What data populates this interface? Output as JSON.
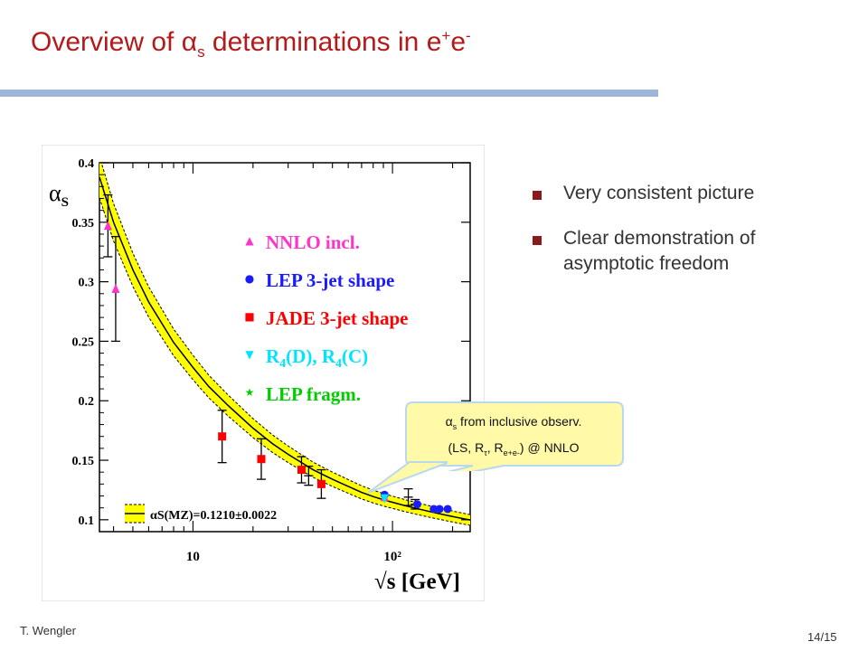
{
  "slide": {
    "title_main": "Overview of ",
    "title_alpha": "α",
    "title_alpha_sub": "s",
    "title_mid": " determinations in e",
    "title_sup1": "+",
    "title_e2": "e",
    "title_sup2": "-",
    "bullets": [
      "Very consistent picture",
      "Clear demonstration of asymptotic freedom"
    ],
    "author": "T. Wengler",
    "page": "14/15"
  },
  "callout": {
    "line1_alpha": "α",
    "line1_sub": "s",
    "line1_rest": " from inclusive observ.",
    "line2_a": "(LS, R",
    "line2_tau": "τ",
    "line2_b": ", R",
    "line2_sub": "e+e-",
    "line2_c": ") @ NNLO"
  },
  "colors": {
    "title": "#b31b1b",
    "rule": "#9fb4d9",
    "bullet": "#8b1a1a",
    "band": "#ffff00",
    "nnlo": "#ff33cc",
    "lep3jet": "#1a1aff",
    "jade": "#ff0000",
    "r4": "#00e5ff",
    "lepfrag": "#00cc00",
    "callout_fill": "#fff9a8",
    "callout_stroke": "#b8d8f0"
  },
  "chart_data": {
    "type": "scatter",
    "title": "",
    "xlabel": "√s [GeV]",
    "ylabel": "αS",
    "xscale": "log",
    "xlim": [
      3.4,
      245
    ],
    "ylim": [
      0.09,
      0.4
    ],
    "x_ticks": [
      {
        "value": 10,
        "label": "10"
      },
      {
        "value": 100,
        "label": "10²"
      }
    ],
    "y_ticks": [
      0.1,
      0.15,
      0.2,
      0.25,
      0.3,
      0.35,
      0.4
    ],
    "y_tick_labels": [
      "0.1",
      "0.15",
      "0.2",
      "0.25",
      "0.3",
      "0.35",
      "0.4"
    ],
    "band_annotation": "αS(MZ)=0.1210±0.0022",
    "legend_position": "top-right",
    "theory_curve": {
      "x": [
        3.4,
        4,
        5,
        6,
        8,
        10,
        12,
        15,
        20,
        25,
        30,
        35,
        40,
        50,
        60,
        70,
        80,
        91.2,
        110,
        130,
        160,
        190,
        220,
        245
      ],
      "y": [
        0.388,
        0.35,
        0.31,
        0.283,
        0.249,
        0.228,
        0.212,
        0.196,
        0.177,
        0.164,
        0.155,
        0.148,
        0.142,
        0.134,
        0.128,
        0.123,
        0.1195,
        0.1165,
        0.1128,
        0.1097,
        0.1062,
        0.1035,
        0.1013,
        0.0998
      ],
      "band": 0.006
    },
    "series": [
      {
        "name": "NNLO incl.",
        "marker": "triangle-up",
        "color": "#ff33cc",
        "points": [
          {
            "x": 3.75,
            "y": 0.347,
            "err": 0.026
          },
          {
            "x": 4.1,
            "y": 0.294,
            "err": 0.044
          },
          {
            "x": 91.2,
            "y": 0.119,
            "err": 0
          }
        ]
      },
      {
        "name": "LEP 3-jet shape",
        "marker": "circle",
        "color": "#1a1aff",
        "points": [
          {
            "x": 91.2,
            "y": 0.121,
            "err": 0
          },
          {
            "x": 133,
            "y": 0.113,
            "err": 0
          },
          {
            "x": 161,
            "y": 0.109,
            "err": 0
          },
          {
            "x": 172,
            "y": 0.109,
            "err": 0
          },
          {
            "x": 189,
            "y": 0.109,
            "err": 0
          }
        ]
      },
      {
        "name": "JADE 3-jet shape",
        "marker": "square",
        "color": "#ff0000",
        "points": [
          {
            "x": 14,
            "y": 0.17,
            "err": 0.022
          },
          {
            "x": 22,
            "y": 0.151,
            "err": 0.017
          },
          {
            "x": 35,
            "y": 0.142,
            "err": 0.011
          },
          {
            "x": 44,
            "y": 0.13,
            "err": 0.012
          }
        ]
      },
      {
        "name": "R4(D), R4(C)",
        "marker": "triangle-down",
        "color": "#00e5ff",
        "points": [
          {
            "x": 91.2,
            "y": 0.118,
            "err": 0
          }
        ]
      },
      {
        "name": "LEP fragm.",
        "marker": "star",
        "color": "#00cc00",
        "points": []
      }
    ],
    "error_only_points": [
      {
        "x": 38,
        "y": 0.137,
        "err": 0.008
      },
      {
        "x": 120,
        "y": 0.119,
        "err": 0.007
      },
      {
        "x": 130,
        "y": 0.113,
        "err": 0.004
      }
    ],
    "legend": [
      {
        "label": "NNLO incl.",
        "marker": "▲",
        "color": "#ff33cc"
      },
      {
        "label": "LEP 3-jet shape",
        "marker": "●",
        "color": "#1a1aff"
      },
      {
        "label": "JADE 3-jet shape",
        "marker": "■",
        "color": "#ff0000"
      },
      {
        "label_main": "R",
        "label_sub1": "4",
        "label_mid": "(D), R",
        "label_sub2": "4",
        "label_end": "(C)",
        "marker": "▼",
        "color": "#00e5ff"
      },
      {
        "label": "LEP fragm.",
        "marker": "★",
        "color": "#00cc00"
      }
    ]
  }
}
